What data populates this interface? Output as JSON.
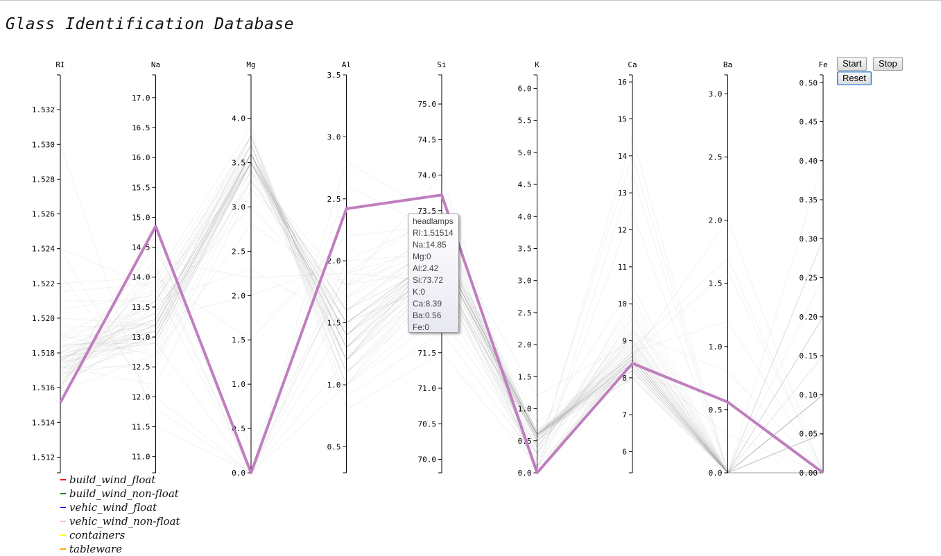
{
  "page": {
    "title": "Glass Identification Database"
  },
  "controls": {
    "start_label": "Start",
    "stop_label": "Stop",
    "reset_label": "Reset"
  },
  "tooltip": {
    "class_name": "headlamps",
    "lines": [
      "RI:1.51514",
      "Na:14.85",
      "Mg:0",
      "Al:2.42",
      "Si:73.72",
      "K:0",
      "Ca:8.39",
      "Ba:0.56",
      "Fe:0"
    ]
  },
  "legend": [
    {
      "label": "build_wind_float",
      "color": "#ff0000"
    },
    {
      "label": "build_wind_non-float",
      "color": "#008000"
    },
    {
      "label": "vehic_wind_float",
      "color": "#0000ff"
    },
    {
      "label": "vehic_wind_non-float",
      "color": "#ffc0cb"
    },
    {
      "label": "containers",
      "color": "#ffff00"
    },
    {
      "label": "tableware",
      "color": "#ffa500"
    }
  ],
  "chart_data": {
    "type": "parallel-coordinates",
    "highlight_color": "#bf7fbf",
    "background_line_color": "#999999",
    "axes": [
      {
        "name": "RI",
        "domain": [
          1.5111,
          1.534
        ],
        "ticks": [
          "1.512",
          "1.514",
          "1.516",
          "1.518",
          "1.520",
          "1.522",
          "1.524",
          "1.526",
          "1.528",
          "1.530",
          "1.532"
        ]
      },
      {
        "name": "Na",
        "domain": [
          10.73,
          17.38
        ],
        "ticks": [
          "11.0",
          "11.5",
          "12.0",
          "12.5",
          "13.0",
          "13.5",
          "14.0",
          "14.5",
          "15.0",
          "15.5",
          "16.0",
          "16.5",
          "17.0"
        ]
      },
      {
        "name": "Mg",
        "domain": [
          0,
          4.49
        ],
        "ticks": [
          "0.0",
          "0.5",
          "1.0",
          "1.5",
          "2.0",
          "2.5",
          "3.0",
          "3.5",
          "4.0"
        ]
      },
      {
        "name": "Al",
        "domain": [
          0.29,
          3.5
        ],
        "ticks": [
          "0.5",
          "1.0",
          "1.5",
          "2.0",
          "2.5",
          "3.0",
          "3.5"
        ]
      },
      {
        "name": "Si",
        "domain": [
          69.81,
          75.41
        ],
        "ticks": [
          "70.0",
          "70.5",
          "71.0",
          "71.5",
          "72.0",
          "72.5",
          "73.0",
          "73.5",
          "74.0",
          "74.5",
          "75.0"
        ]
      },
      {
        "name": "K",
        "domain": [
          0,
          6.21
        ],
        "ticks": [
          "0.0",
          "0.5",
          "1.0",
          "1.5",
          "2.0",
          "2.5",
          "3.0",
          "3.5",
          "4.0",
          "4.5",
          "5.0",
          "5.5",
          "6.0"
        ]
      },
      {
        "name": "Ca",
        "domain": [
          5.43,
          16.19
        ],
        "ticks": [
          "6",
          "7",
          "8",
          "9",
          "10",
          "11",
          "12",
          "13",
          "14",
          "15",
          "16"
        ]
      },
      {
        "name": "Ba",
        "domain": [
          0,
          3.15
        ],
        "ticks": [
          "0.0",
          "0.5",
          "1.0",
          "1.5",
          "2.0",
          "2.5",
          "3.0"
        ]
      },
      {
        "name": "Fe",
        "domain": [
          0,
          0.51
        ],
        "ticks": [
          "0.00",
          "0.05",
          "0.10",
          "0.15",
          "0.20",
          "0.25",
          "0.30",
          "0.35",
          "0.40",
          "0.45",
          "0.50"
        ]
      }
    ],
    "highlighted_record": {
      "class": "headlamps",
      "values": [
        1.51514,
        14.85,
        0,
        2.42,
        73.72,
        0,
        8.39,
        0.56,
        0
      ]
    },
    "background_records": [
      [
        1.5176,
        13.3,
        3.6,
        1.4,
        72.7,
        0.57,
        8.5,
        0,
        0
      ],
      [
        1.518,
        13.6,
        3.5,
        1.2,
        72.8,
        0.6,
        8.3,
        0,
        0.1
      ],
      [
        1.5165,
        13.0,
        3.6,
        1.3,
        73.0,
        0.5,
        8.0,
        0,
        0
      ],
      [
        1.5178,
        12.9,
        3.5,
        1.6,
        72.8,
        0.6,
        8.4,
        0,
        0.2
      ],
      [
        1.5183,
        13.4,
        3.4,
        1.2,
        72.6,
        0.55,
        8.8,
        0,
        0
      ],
      [
        1.5172,
        13.2,
        3.55,
        1.35,
        72.9,
        0.58,
        8.2,
        0,
        0.05
      ],
      [
        1.519,
        13.8,
        3.7,
        1.1,
        72.3,
        0.4,
        9.3,
        0,
        0
      ],
      [
        1.5215,
        13.9,
        3.8,
        0.9,
        71.8,
        0.2,
        9.6,
        0,
        0.15
      ],
      [
        1.5175,
        12.8,
        3.5,
        1.5,
        72.9,
        0.62,
        8.4,
        0,
        0.3
      ],
      [
        1.5162,
        13.1,
        3.5,
        1.6,
        73.1,
        0.6,
        8.0,
        0,
        0
      ],
      [
        1.5189,
        13.5,
        3.7,
        1.2,
        72.6,
        0.55,
        9.0,
        0,
        0.1
      ],
      [
        1.52,
        13.2,
        3.6,
        1.1,
        72.5,
        0.45,
        9.4,
        0,
        0
      ],
      [
        1.522,
        14.0,
        3.9,
        0.8,
        71.5,
        0.1,
        10.2,
        0,
        0.05
      ],
      [
        1.5168,
        12.6,
        3.4,
        1.6,
        73.1,
        0.65,
        8.3,
        0,
        0.2
      ],
      [
        1.5174,
        13.0,
        3.3,
        1.5,
        72.9,
        0.6,
        8.6,
        0,
        0
      ],
      [
        1.518,
        13.3,
        3.6,
        1.3,
        72.8,
        0.55,
        8.6,
        0,
        0.25
      ],
      [
        1.5178,
        12.9,
        0.0,
        1.7,
        73.3,
        0.6,
        10.5,
        0,
        0
      ],
      [
        1.5166,
        13.6,
        2.3,
        1.5,
        72.9,
        0.6,
        8.7,
        0,
        0.1
      ],
      [
        1.5205,
        13.7,
        3.8,
        1.0,
        72.0,
        0.3,
        9.8,
        0,
        0
      ],
      [
        1.5158,
        12.7,
        2.8,
        1.8,
        73.0,
        0.65,
        8.6,
        0,
        0.05
      ],
      [
        1.5184,
        13.0,
        3.5,
        1.4,
        72.7,
        0.56,
        8.9,
        0,
        0
      ],
      [
        1.524,
        13.8,
        0.0,
        1.0,
        72.5,
        0.1,
        12.5,
        0,
        0.2
      ],
      [
        1.53,
        11.5,
        0.0,
        1.2,
        73.0,
        0.2,
        14.5,
        0,
        0
      ],
      [
        1.516,
        14.3,
        2.2,
        1.9,
        73.0,
        0.0,
        8.0,
        0.6,
        0
      ],
      [
        1.517,
        13.5,
        3.0,
        1.6,
        72.8,
        0.5,
        8.5,
        0,
        0
      ],
      [
        1.5158,
        14.6,
        0.0,
        2.0,
        73.4,
        0.0,
        8.6,
        1.6,
        0
      ],
      [
        1.5155,
        14.2,
        0.0,
        2.6,
        73.2,
        0.0,
        8.6,
        2.0,
        0
      ],
      [
        1.519,
        12.7,
        3.6,
        1.0,
        72.7,
        0.1,
        9.7,
        0,
        0.3
      ],
      [
        1.5177,
        13.2,
        3.6,
        1.3,
        72.9,
        0.6,
        8.3,
        0,
        0
      ],
      [
        1.5168,
        14.5,
        0.3,
        1.8,
        74.0,
        0.0,
        9.2,
        0.8,
        0
      ],
      [
        1.5172,
        12.2,
        3.2,
        1.8,
        73.2,
        1.2,
        9.0,
        0,
        0
      ],
      [
        1.5183,
        13.1,
        3.3,
        1.5,
        72.5,
        0.6,
        8.9,
        0,
        0.15
      ],
      [
        1.5163,
        13.7,
        3.6,
        1.4,
        72.9,
        0.6,
        8.0,
        0,
        0.05
      ],
      [
        1.5195,
        13.2,
        3.8,
        1.1,
        72.6,
        0.3,
        9.3,
        0,
        0
      ],
      [
        1.5176,
        13.4,
        3.5,
        1.2,
        73.0,
        0.5,
        8.7,
        0,
        0
      ],
      [
        1.521,
        13.6,
        3.7,
        1.0,
        72.2,
        0.3,
        10.0,
        0,
        0.4
      ],
      [
        1.5173,
        13.0,
        3.6,
        1.5,
        72.8,
        0.6,
        8.3,
        0,
        0.1
      ],
      [
        1.5167,
        12.9,
        3.5,
        1.6,
        73.0,
        0.65,
        8.2,
        0,
        0
      ],
      [
        1.5181,
        13.3,
        3.7,
        1.3,
        72.6,
        0.5,
        8.8,
        0,
        0
      ],
      [
        1.5159,
        13.3,
        2.0,
        2.0,
        72.9,
        0.6,
        8.5,
        0,
        0.1
      ],
      [
        1.5175,
        13.2,
        3.5,
        1.4,
        72.9,
        0.6,
        8.4,
        0,
        0
      ],
      [
        1.5179,
        13.1,
        3.6,
        1.2,
        72.8,
        0.6,
        8.6,
        0,
        0.2
      ],
      [
        1.5186,
        13.6,
        3.8,
        1.1,
        72.4,
        0.4,
        9.1,
        0,
        0
      ],
      [
        1.5172,
        12.5,
        3.3,
        1.7,
        73.0,
        0.8,
        8.5,
        0,
        0
      ],
      [
        1.5166,
        14.0,
        1.5,
        2.2,
        73.3,
        0.1,
        8.5,
        0.3,
        0
      ],
      [
        1.5225,
        12.0,
        0.0,
        1.9,
        72.5,
        0.0,
        13.5,
        0,
        0.1
      ],
      [
        1.5177,
        13.3,
        3.6,
        1.3,
        72.8,
        0.55,
        8.5,
        0,
        0
      ],
      [
        1.5174,
        13.1,
        3.6,
        1.4,
        73.0,
        0.6,
        8.2,
        0,
        0.05
      ],
      [
        1.5161,
        14.1,
        0.0,
        1.9,
        73.5,
        0.0,
        8.7,
        1.2,
        0
      ],
      [
        1.5178,
        13.4,
        3.5,
        1.3,
        72.8,
        0.55,
        8.6,
        0,
        0
      ],
      [
        1.5185,
        12.9,
        3.5,
        1.5,
        72.5,
        0.6,
        9.0,
        0,
        0.1
      ],
      [
        1.5169,
        13.2,
        3.5,
        1.4,
        73.0,
        0.6,
        8.1,
        0,
        0
      ],
      [
        1.524,
        11.8,
        0.0,
        1.5,
        72.8,
        0.3,
        14.0,
        0,
        0
      ],
      [
        1.5164,
        13.8,
        3.4,
        1.8,
        72.7,
        0.1,
        8.2,
        0,
        0
      ],
      [
        1.518,
        13.0,
        3.7,
        1.2,
        72.9,
        0.5,
        8.7,
        0,
        0.3
      ],
      [
        1.5175,
        13.6,
        3.6,
        1.3,
        72.6,
        0.5,
        8.5,
        0,
        0
      ],
      [
        1.5171,
        13.0,
        3.5,
        1.5,
        72.9,
        0.6,
        8.4,
        0,
        0.05
      ],
      [
        1.5188,
        13.2,
        3.8,
        1.2,
        72.5,
        0.4,
        9.2,
        0,
        0
      ],
      [
        1.516,
        14.9,
        0.0,
        2.8,
        73.4,
        0.0,
        8.8,
        1.7,
        0
      ],
      [
        1.5176,
        13.1,
        3.6,
        1.4,
        72.8,
        0.6,
        8.4,
        0,
        0.1
      ]
    ]
  }
}
